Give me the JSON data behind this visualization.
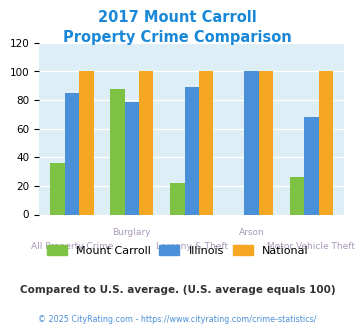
{
  "title_line1": "2017 Mount Carroll",
  "title_line2": "Property Crime Comparison",
  "categories": [
    "All Property Crime",
    "Burglary",
    "Larceny & Theft",
    "Arson",
    "Motor Vehicle Theft"
  ],
  "top_labels": [
    "",
    "Burglary",
    "",
    "Arson",
    ""
  ],
  "bot_labels": [
    "All Property Crime",
    "",
    "Larceny & Theft",
    "",
    "Motor Vehicle Theft"
  ],
  "series": {
    "Mount Carroll": [
      36,
      88,
      22,
      0,
      26
    ],
    "Illinois": [
      85,
      79,
      89,
      100,
      68
    ],
    "National": [
      100,
      100,
      100,
      100,
      100
    ]
  },
  "colors": {
    "Mount Carroll": "#7dc242",
    "Illinois": "#4a90d9",
    "National": "#f5a623"
  },
  "ylim": [
    0,
    120
  ],
  "yticks": [
    0,
    20,
    40,
    60,
    80,
    100,
    120
  ],
  "plot_bg": "#ddeef6",
  "title_color": "#1a88d8",
  "label_color": "#aa99bb",
  "subtitle_note": "Compared to U.S. average. (U.S. average equals 100)",
  "footer": "© 2025 CityRating.com - https://www.cityrating.com/crime-statistics/",
  "subtitle_color": "#333333",
  "footer_color": "#4a90d9",
  "legend_labels": [
    "Mount Carroll",
    "Illinois",
    "National"
  ]
}
